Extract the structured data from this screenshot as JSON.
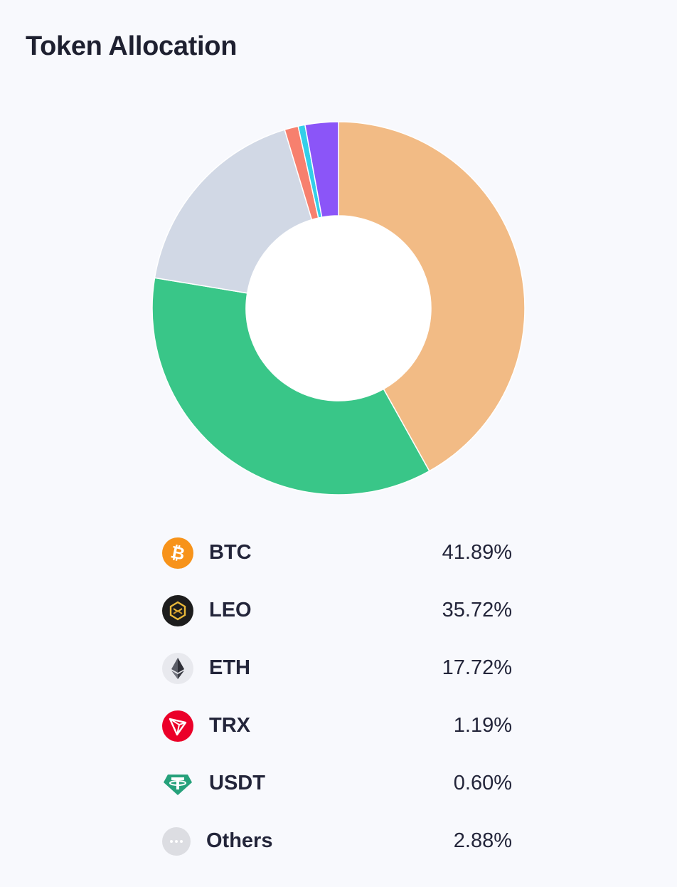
{
  "header": {
    "title": "Token Allocation"
  },
  "chart_data": {
    "type": "pie",
    "variant": "donut",
    "categories": [
      "BTC",
      "LEO",
      "ETH",
      "TRX",
      "USDT",
      "Others"
    ],
    "values": [
      41.89,
      35.72,
      17.72,
      1.19,
      0.6,
      2.88
    ],
    "value_labels": [
      "41.89%",
      "35.72%",
      "17.72%",
      "1.19%",
      "0.60%",
      "2.88%"
    ],
    "colors": [
      "#f2bb85",
      "#39c688",
      "#d1d8e5",
      "#f7806e",
      "#33cfe9",
      "#8b55f8"
    ],
    "start": "top",
    "direction": "clockwise",
    "legend": "bottom"
  },
  "legend_icons": [
    "bitcoin-icon",
    "leo-icon",
    "ethereum-icon",
    "tron-icon",
    "tether-icon",
    "more-dots-icon"
  ]
}
